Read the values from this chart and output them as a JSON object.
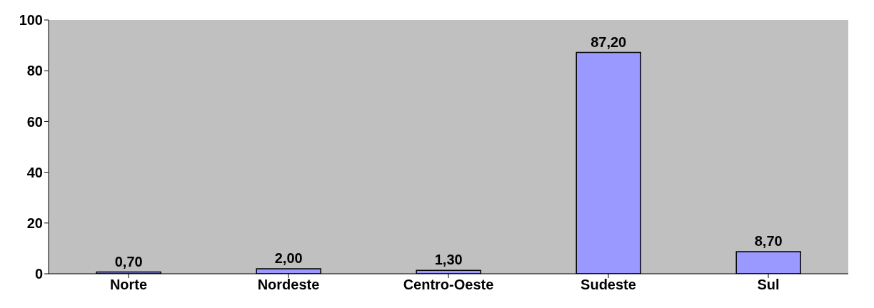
{
  "chart_data": {
    "type": "bar",
    "categories": [
      "Norte",
      "Nordeste",
      "Centro-Oeste",
      "Sudeste",
      "Sul"
    ],
    "values": [
      0.7,
      2.0,
      1.3,
      87.2,
      8.7
    ],
    "value_labels": [
      "0,70",
      "2,00",
      "1,30",
      "87,20",
      "8,70"
    ],
    "color": "#9999ff",
    "ylim": [
      0,
      100
    ],
    "yticks": [
      0,
      20,
      40,
      60,
      80,
      100
    ]
  }
}
